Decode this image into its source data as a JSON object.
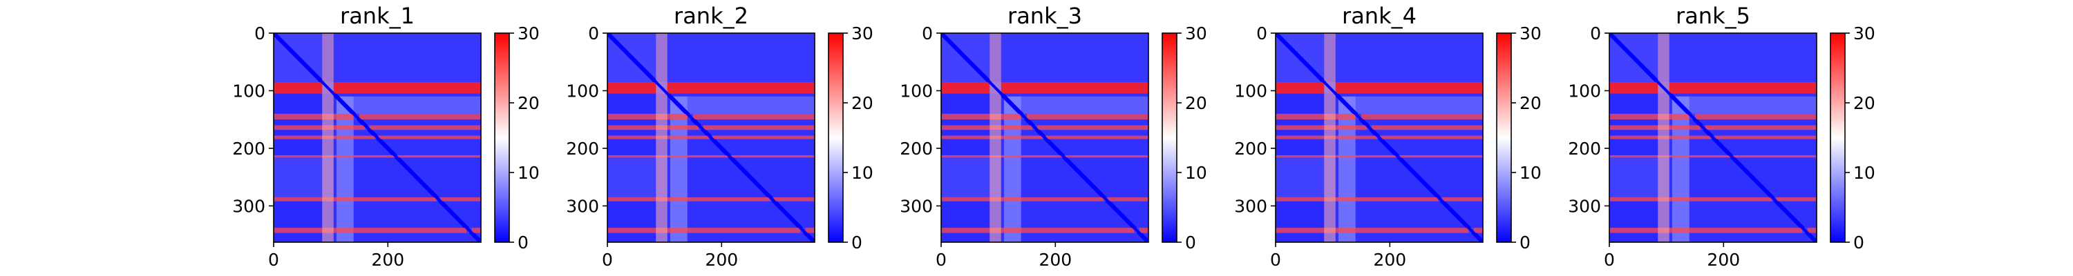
{
  "chart_data": [
    {
      "type": "heatmap",
      "title": "rank_1",
      "n_residues": 363,
      "bands": [
        [
          85,
          105
        ],
        [
          140,
          150
        ],
        [
          160,
          168
        ],
        [
          178,
          184
        ],
        [
          212,
          216
        ],
        [
          285,
          292
        ],
        [
          338,
          347
        ]
      ],
      "xticks": [
        "0",
        "200"
      ],
      "yticks": [
        "0",
        "100",
        "200",
        "300"
      ],
      "colorbar": {
        "ticks": [
          "0",
          "10",
          "20",
          "30"
        ],
        "vmin": 0,
        "vmax": 30,
        "colors": [
          "#0000ff",
          "#ffffff",
          "#ff0000"
        ]
      }
    },
    {
      "type": "heatmap",
      "title": "rank_2",
      "n_residues": 363,
      "bands": [
        [
          85,
          105
        ],
        [
          140,
          150
        ],
        [
          160,
          168
        ],
        [
          178,
          184
        ],
        [
          212,
          216
        ],
        [
          285,
          292
        ],
        [
          338,
          347
        ]
      ],
      "xticks": [
        "0",
        "200"
      ],
      "yticks": [
        "0",
        "100",
        "200",
        "300"
      ],
      "colorbar": {
        "ticks": [
          "0",
          "10",
          "20",
          "30"
        ],
        "vmin": 0,
        "vmax": 30,
        "colors": [
          "#0000ff",
          "#ffffff",
          "#ff0000"
        ]
      }
    },
    {
      "type": "heatmap",
      "title": "rank_3",
      "n_residues": 363,
      "bands": [
        [
          85,
          105
        ],
        [
          140,
          150
        ],
        [
          160,
          168
        ],
        [
          178,
          184
        ],
        [
          212,
          216
        ],
        [
          285,
          292
        ],
        [
          338,
          347
        ]
      ],
      "xticks": [
        "0",
        "200"
      ],
      "yticks": [
        "0",
        "100",
        "200",
        "300"
      ],
      "colorbar": {
        "ticks": [
          "0",
          "10",
          "20",
          "30"
        ],
        "vmin": 0,
        "vmax": 30,
        "colors": [
          "#0000ff",
          "#ffffff",
          "#ff0000"
        ]
      }
    },
    {
      "type": "heatmap",
      "title": "rank_4",
      "n_residues": 363,
      "bands": [
        [
          85,
          105
        ],
        [
          140,
          150
        ],
        [
          160,
          168
        ],
        [
          178,
          184
        ],
        [
          212,
          216
        ],
        [
          285,
          292
        ],
        [
          338,
          347
        ]
      ],
      "xticks": [
        "0",
        "200"
      ],
      "yticks": [
        "0",
        "100",
        "200",
        "300"
      ],
      "colorbar": {
        "ticks": [
          "0",
          "10",
          "20",
          "30"
        ],
        "vmin": 0,
        "vmax": 30,
        "colors": [
          "#0000ff",
          "#ffffff",
          "#ff0000"
        ]
      }
    },
    {
      "type": "heatmap",
      "title": "rank_5",
      "n_residues": 363,
      "bands": [
        [
          85,
          105
        ],
        [
          140,
          150
        ],
        [
          160,
          168
        ],
        [
          178,
          184
        ],
        [
          212,
          216
        ],
        [
          285,
          292
        ],
        [
          338,
          347
        ]
      ],
      "xticks": [
        "0",
        "200"
      ],
      "yticks": [
        "0",
        "100",
        "200",
        "300"
      ],
      "colorbar": {
        "ticks": [
          "0",
          "10",
          "20",
          "30"
        ],
        "vmin": 0,
        "vmax": 30,
        "colors": [
          "#0000ff",
          "#ffffff",
          "#ff0000"
        ]
      }
    }
  ]
}
